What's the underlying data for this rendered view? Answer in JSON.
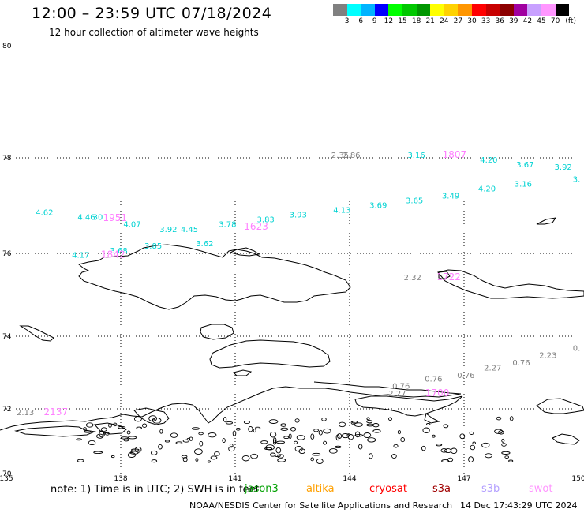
{
  "header": {
    "title": "12:00 – 23:59 UTC 07/18/2024",
    "subtitle": "12 hour collection of altimeter wave heights"
  },
  "colorbar": {
    "unit": "(ft)",
    "colors": [
      "#808080",
      "#00ffff",
      "#00b4ff",
      "#0000ff",
      "#00ff00",
      "#00c800",
      "#009600",
      "#ffff00",
      "#ffd200",
      "#ff9600",
      "#ff0000",
      "#c80000",
      "#8c0000",
      "#a000a0",
      "#c8a0ff",
      "#ff96ff",
      "#000000"
    ],
    "labels": [
      "3",
      "6",
      "9",
      "12",
      "15",
      "18",
      "21",
      "24",
      "27",
      "30",
      "33",
      "36",
      "39",
      "42",
      "45",
      "70"
    ]
  },
  "map": {
    "lon_min": 135,
    "lon_max": 150,
    "lat_min": 70,
    "lat_max": 80,
    "lon_ticks": [
      "135",
      "138",
      "141",
      "144",
      "147",
      "150"
    ],
    "lat_ticks": [
      "80",
      "78",
      "76",
      "74",
      "72",
      "70"
    ]
  },
  "observations": [
    {
      "text": "4.62",
      "color": "#00d2d2",
      "lon": 136.0,
      "lat": 76.8
    },
    {
      "text": "4.46",
      "color": "#00d2d2",
      "lon": 137.1,
      "lat": 76.7
    },
    {
      "text": "30",
      "color": "#00d2d2",
      "lon": 137.4,
      "lat": 76.7
    },
    {
      "text": "1951",
      "color": "#ff80ff",
      "lon": 137.85,
      "lat": 76.68
    },
    {
      "text": "4.07",
      "color": "#00d2d2",
      "lon": 138.3,
      "lat": 76.55
    },
    {
      "text": "3.92",
      "color": "#00d2d2",
      "lon": 139.25,
      "lat": 76.45
    },
    {
      "text": "4.45",
      "color": "#00d2d2",
      "lon": 139.8,
      "lat": 76.45
    },
    {
      "text": "3.78",
      "color": "#00d2d2",
      "lon": 140.8,
      "lat": 76.55
    },
    {
      "text": "3.83",
      "color": "#00d2d2",
      "lon": 141.8,
      "lat": 76.65
    },
    {
      "text": "1623",
      "color": "#ff80ff",
      "lon": 141.55,
      "lat": 76.5
    },
    {
      "text": "3.93",
      "color": "#00d2d2",
      "lon": 142.65,
      "lat": 76.75
    },
    {
      "text": "4.13",
      "color": "#00d2d2",
      "lon": 143.8,
      "lat": 76.85
    },
    {
      "text": "3.69",
      "color": "#00d2d2",
      "lon": 144.75,
      "lat": 76.95
    },
    {
      "text": "3.65",
      "color": "#00d2d2",
      "lon": 145.7,
      "lat": 77.05
    },
    {
      "text": "3.49",
      "color": "#00d2d2",
      "lon": 146.65,
      "lat": 77.15
    },
    {
      "text": "4.20",
      "color": "#00d2d2",
      "lon": 147.6,
      "lat": 77.3
    },
    {
      "text": "3.16",
      "color": "#00d2d2",
      "lon": 148.55,
      "lat": 77.4
    },
    {
      "text": "3.",
      "color": "#00d2d2",
      "lon": 149.95,
      "lat": 77.5
    },
    {
      "text": "3.16",
      "color": "#00d2d2",
      "lon": 145.75,
      "lat": 78.0
    },
    {
      "text": "1807",
      "color": "#ff80ff",
      "lon": 146.75,
      "lat": 78.0
    },
    {
      "text": "4.20",
      "color": "#00d2d2",
      "lon": 147.65,
      "lat": 77.9
    },
    {
      "text": "3.67",
      "color": "#00d2d2",
      "lon": 148.6,
      "lat": 77.8
    },
    {
      "text": "3.92",
      "color": "#00d2d2",
      "lon": 149.6,
      "lat": 77.75
    },
    {
      "text": "2.35",
      "color": "#808080",
      "lon": 143.75,
      "lat": 78.0
    },
    {
      "text": "2.86",
      "color": "#808080",
      "lon": 144.05,
      "lat": 78.0
    },
    {
      "text": "4.17",
      "color": "#00d2d2",
      "lon": 136.95,
      "lat": 75.9
    },
    {
      "text": "3.68",
      "color": "#00d2d2",
      "lon": 137.95,
      "lat": 76.0
    },
    {
      "text": "1842",
      "color": "#ff80ff",
      "lon": 137.8,
      "lat": 75.9
    },
    {
      "text": "3.85",
      "color": "#00d2d2",
      "lon": 138.85,
      "lat": 76.1
    },
    {
      "text": "3.62",
      "color": "#00d2d2",
      "lon": 140.2,
      "lat": 76.15
    },
    {
      "text": "2.32",
      "color": "#808080",
      "lon": 145.65,
      "lat": 75.35
    },
    {
      "text": "1722",
      "color": "#ff80ff",
      "lon": 146.6,
      "lat": 75.35
    },
    {
      "text": "0.",
      "color": "#808080",
      "lon": 149.95,
      "lat": 73.6
    },
    {
      "text": "2.23",
      "color": "#808080",
      "lon": 149.2,
      "lat": 73.4
    },
    {
      "text": "0.76",
      "color": "#808080",
      "lon": 148.5,
      "lat": 73.2
    },
    {
      "text": "2.27",
      "color": "#808080",
      "lon": 147.75,
      "lat": 73.05
    },
    {
      "text": "0.76",
      "color": "#808080",
      "lon": 147.05,
      "lat": 72.85
    },
    {
      "text": "0.76",
      "color": "#808080",
      "lon": 146.2,
      "lat": 72.75
    },
    {
      "text": "0.76",
      "color": "#808080",
      "lon": 145.35,
      "lat": 72.55
    },
    {
      "text": "2.27",
      "color": "#808080",
      "lon": 145.25,
      "lat": 72.35
    },
    {
      "text": "1700",
      "color": "#ff80ff",
      "lon": 146.3,
      "lat": 72.35
    },
    {
      "text": "2.13",
      "color": "#808080",
      "lon": 135.5,
      "lat": 71.8
    },
    {
      "text": "2137",
      "color": "#ff80ff",
      "lon": 136.3,
      "lat": 71.8
    }
  ],
  "note": "note:  1) Time is in UTC;  2) SWH is in feet",
  "legend": [
    {
      "name": "jason3",
      "color": "#00a000"
    },
    {
      "name": "altika",
      "color": "#ffa000"
    },
    {
      "name": "cryosat",
      "color": "#ff0000"
    },
    {
      "name": "s3a",
      "color": "#a00000"
    },
    {
      "name": "s3b",
      "color": "#b4a0ff"
    },
    {
      "name": "swot",
      "color": "#ff96ff"
    }
  ],
  "footer": {
    "credit": "NOAA/NESDIS Center for Satellite Applications and Research",
    "timestamp": "14 Dec 17:43:29 UTC 2024"
  }
}
